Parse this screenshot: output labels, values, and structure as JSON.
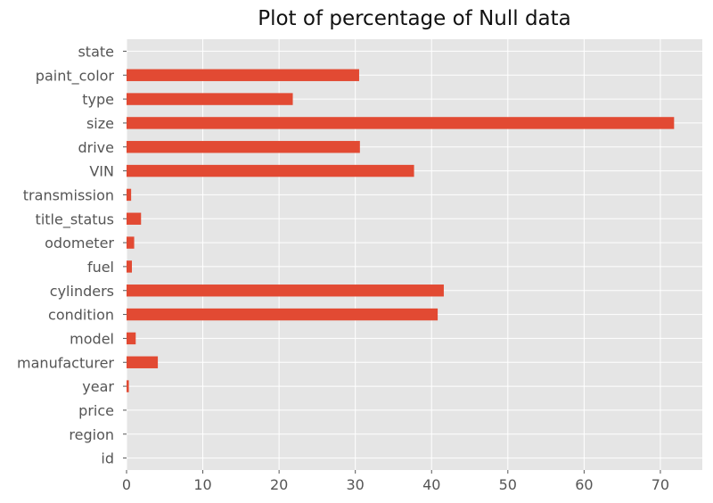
{
  "chart_data": {
    "type": "bar",
    "orientation": "horizontal",
    "title": "Plot of percentage of Null data",
    "xlabel": "",
    "ylabel": "",
    "xlim": [
      0,
      75.5
    ],
    "x_ticks": [
      0,
      10,
      20,
      30,
      40,
      50,
      60,
      70
    ],
    "grid": true,
    "legend": "none",
    "categories": [
      "id",
      "region",
      "price",
      "year",
      "manufacturer",
      "model",
      "condition",
      "cylinders",
      "fuel",
      "odometer",
      "title_status",
      "transmission",
      "VIN",
      "drive",
      "size",
      "type",
      "paint_color",
      "state"
    ],
    "values": [
      0,
      0,
      0,
      0.3,
      4.1,
      1.2,
      40.8,
      41.6,
      0.7,
      1.0,
      1.9,
      0.6,
      37.7,
      30.6,
      71.8,
      21.8,
      30.5,
      0
    ],
    "colors": {
      "bar": "#e24a33",
      "plot_background": "#e5e5e5",
      "grid": "#ffffff",
      "tick_label": "#555555"
    }
  }
}
